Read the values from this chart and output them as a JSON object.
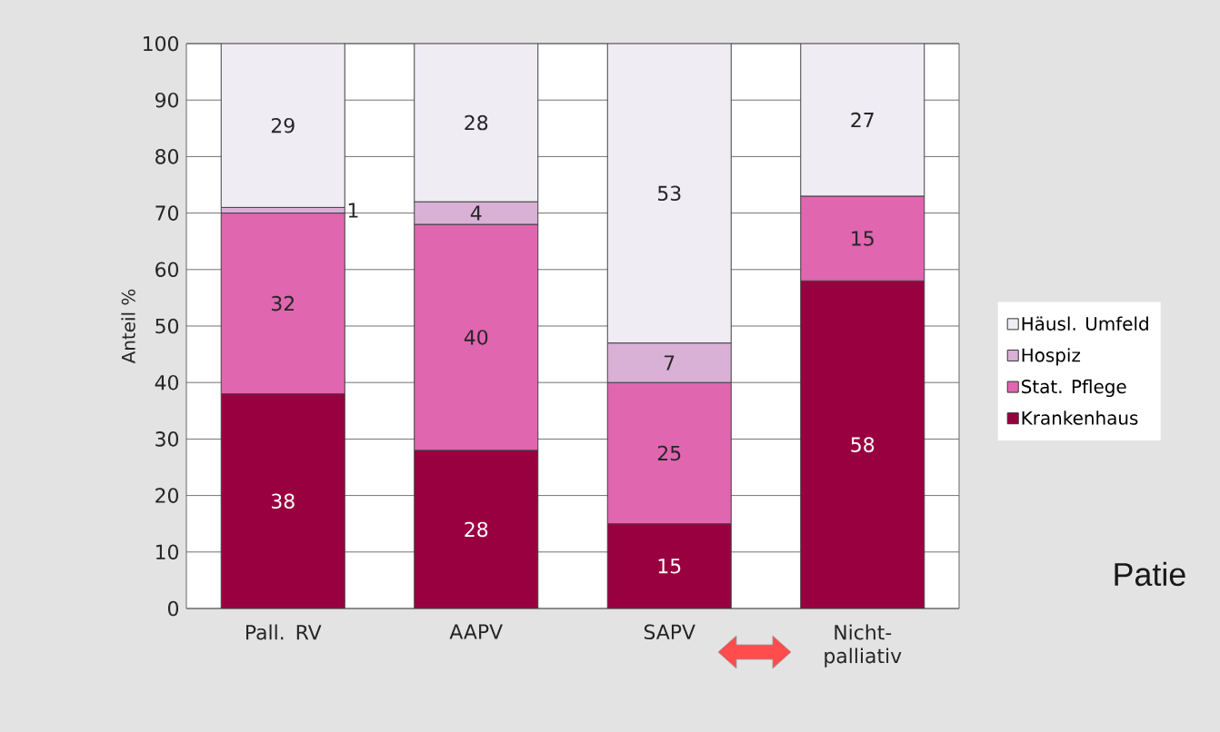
{
  "chart_data": {
    "type": "bar",
    "stacked": true,
    "categories": [
      "Pall. RV",
      "AAPV",
      "SAPV",
      "Nicht-palliativ"
    ],
    "ylabel": "Anteil %",
    "ylim": [
      0,
      100
    ],
    "yticks": [
      0,
      10,
      20,
      30,
      40,
      50,
      60,
      70,
      80,
      90,
      100
    ],
    "grid": "y",
    "legend": "right",
    "data_labels": true,
    "series": [
      {
        "name": "Krankenhaus",
        "color": "#990040",
        "values": [
          38,
          28,
          15,
          58
        ]
      },
      {
        "name": "Stat. Pflege",
        "color": "#e066b0",
        "values": [
          32,
          40,
          25,
          15
        ]
      },
      {
        "name": "Hospiz",
        "color": "#d9b0d6",
        "values": [
          1,
          4,
          7,
          null
        ]
      },
      {
        "name": "Häusl. Umfeld",
        "color": "#f0ecf4",
        "values": [
          29,
          28,
          53,
          27
        ]
      }
    ],
    "annotations": [
      "Patie"
    ]
  }
}
